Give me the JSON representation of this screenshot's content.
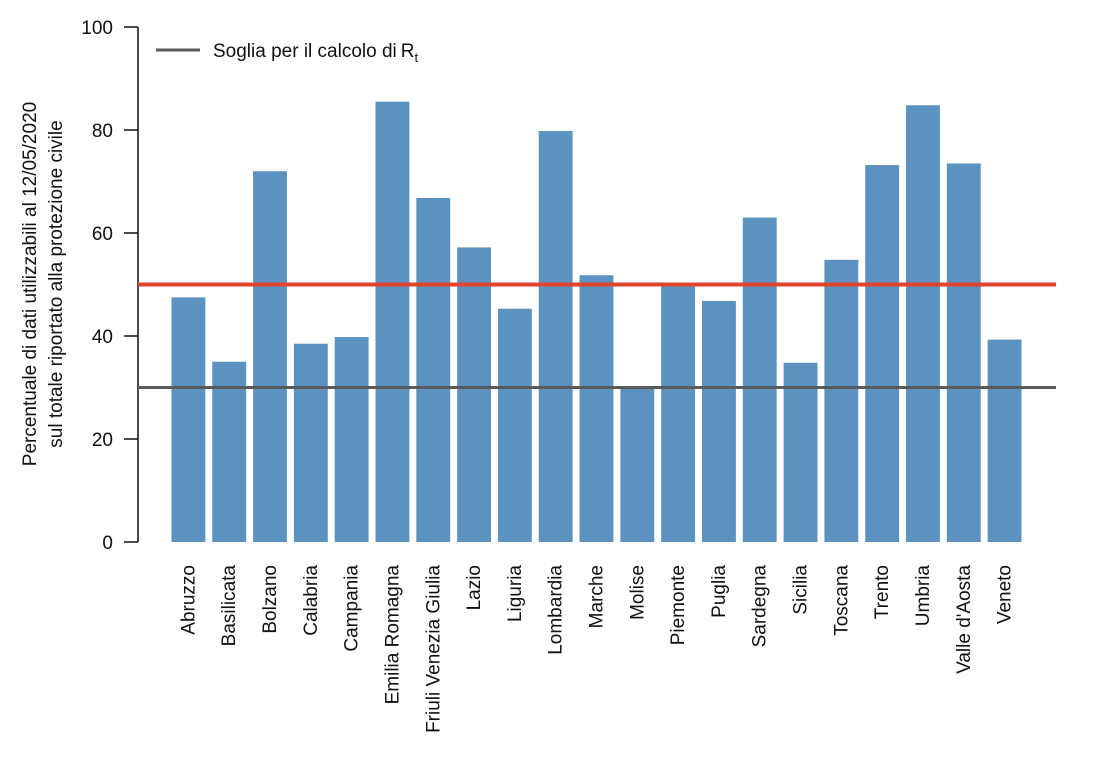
{
  "chart_data": {
    "type": "bar",
    "ylabel_lines": [
      "Percentuale di dati utilizzabili al 12/05/2020",
      "sul totale riportato alla protezione civile"
    ],
    "xlabel": "",
    "ylim": [
      0,
      100
    ],
    "yticks": [
      0,
      20,
      40,
      60,
      80,
      100
    ],
    "categories": [
      "Abruzzo",
      "Basilicata",
      "Bolzano",
      "Calabria",
      "Campania",
      "Emilia Romagna",
      "Friuli Venezia Giulia",
      "Lazio",
      "Liguria",
      "Lombardia",
      "Marche",
      "Molise",
      "Piemonte",
      "Puglia",
      "Sardegna",
      "Sicilia",
      "Toscana",
      "Trento",
      "Umbria",
      "Valle d'Aosta",
      "Veneto"
    ],
    "values": [
      47.5,
      35,
      72,
      38.5,
      39.8,
      85.5,
      66.8,
      57.2,
      45.3,
      79.8,
      51.8,
      29.8,
      50.3,
      46.8,
      63,
      34.8,
      54.8,
      73.2,
      84.8,
      73.5,
      39.3
    ],
    "reference_lines": [
      {
        "value": 30,
        "color": "#5a5a5a",
        "legend": true
      },
      {
        "value": 50,
        "color": "#e0442c",
        "legend": false
      }
    ],
    "legend": {
      "label": "Soglia per il calcolo di",
      "symbol": "R",
      "subscript": "t",
      "placement": "top-left"
    },
    "bar_color": "#5b92bf",
    "grid": false
  }
}
